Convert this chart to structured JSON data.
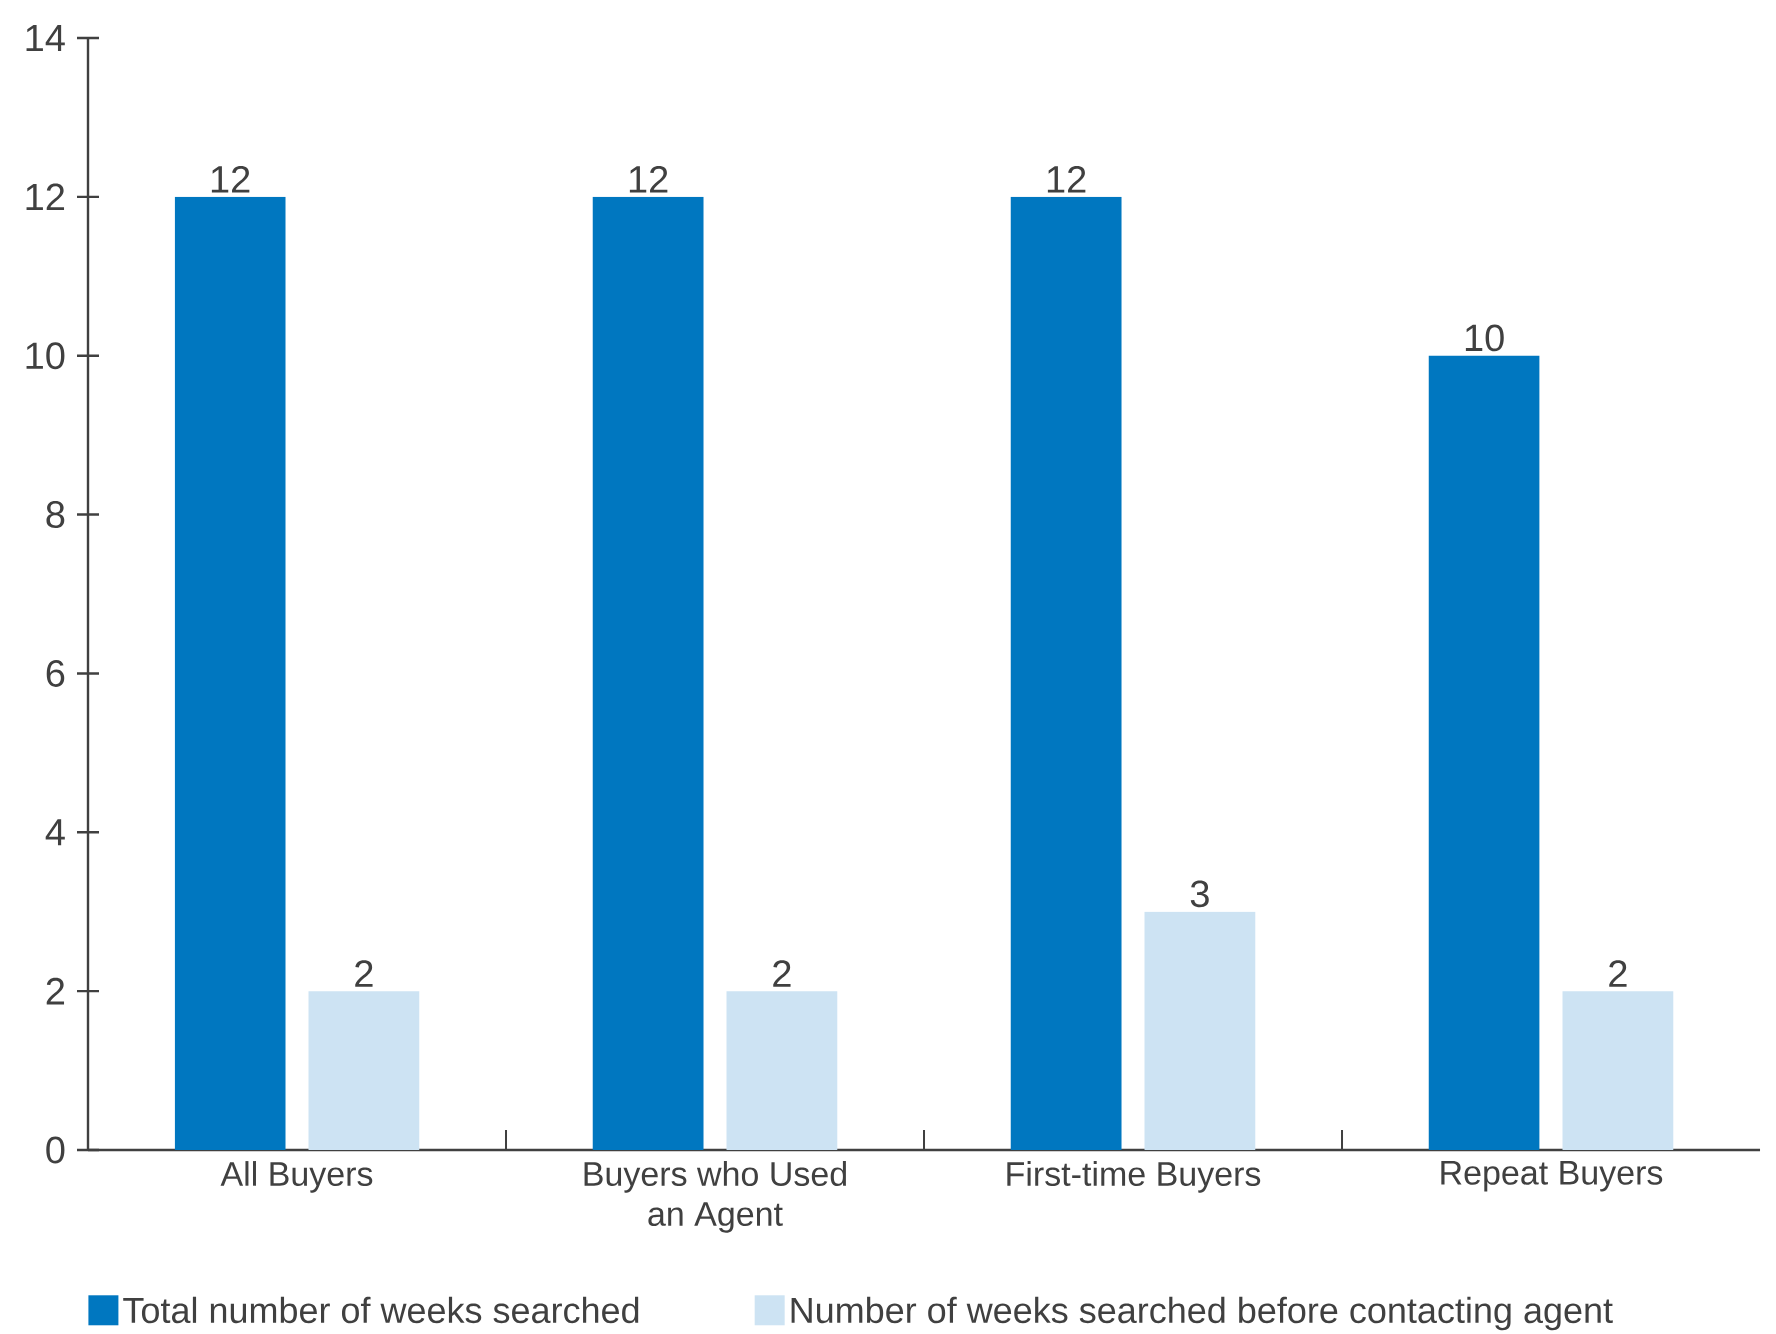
{
  "chart_data": {
    "type": "bar",
    "categories": [
      "All Buyers",
      "Buyers who Used an Agent",
      "First-time Buyers",
      "Repeat Buyers"
    ],
    "series": [
      {
        "name": "Total number of weeks searched",
        "color": "#0077c0",
        "values": [
          12,
          12,
          12,
          10
        ]
      },
      {
        "name": "Number of weeks searched before contacting agent",
        "color": "#cde3f3",
        "values": [
          2,
          2,
          3,
          2
        ]
      }
    ],
    "ylim": [
      0,
      14
    ],
    "yticks": [
      0,
      2,
      4,
      6,
      8,
      10,
      12,
      14
    ],
    "data_labels": true,
    "legend": "bottom"
  }
}
